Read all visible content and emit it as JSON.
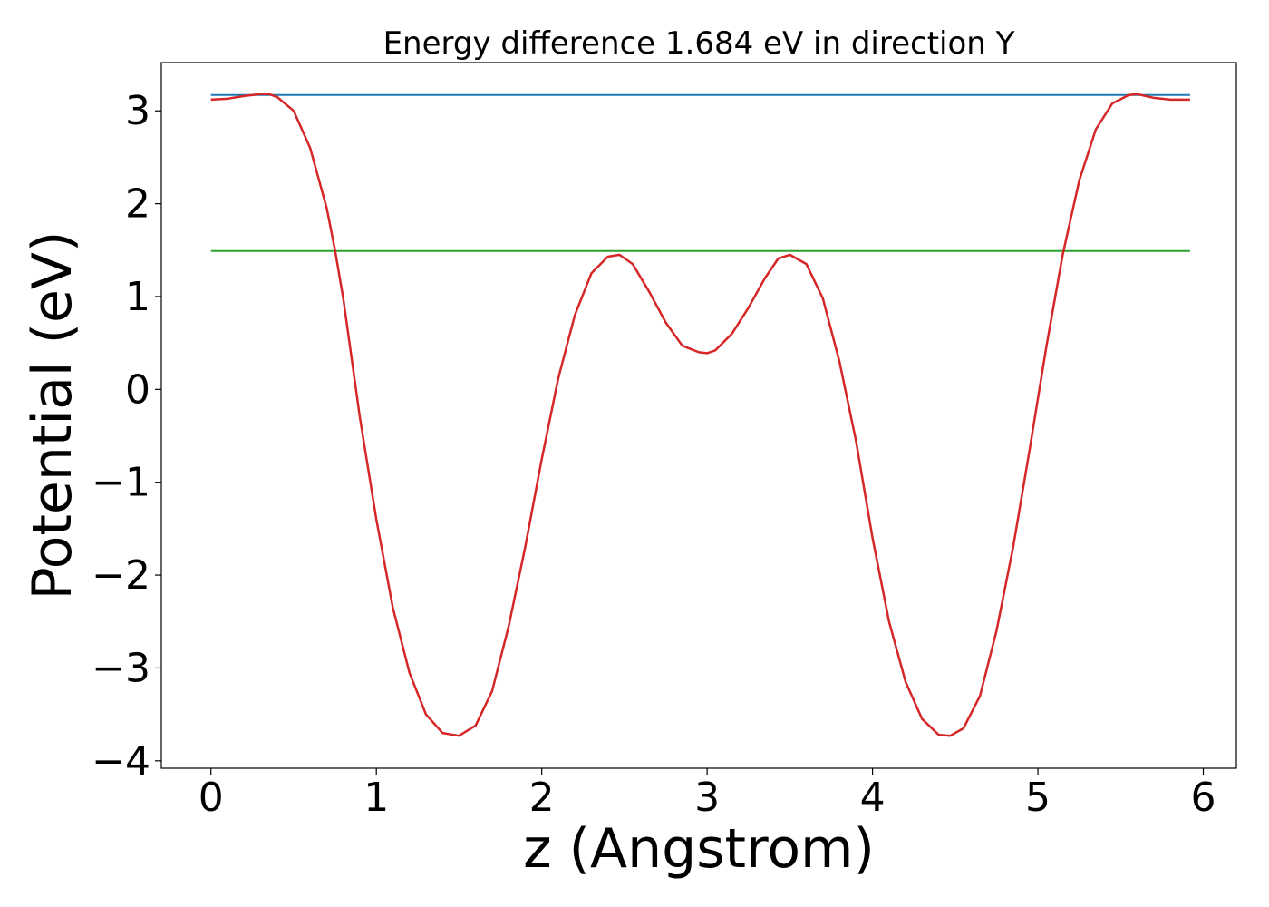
{
  "chart_data": {
    "type": "line",
    "title": "Energy difference 1.684 eV in direction Y",
    "xlabel": "z (Angstrom)",
    "ylabel": "Potential (eV)",
    "xlim": [
      -0.3,
      6.2
    ],
    "ylim": [
      -4.08,
      3.52
    ],
    "x_ticks": [
      0,
      1,
      2,
      3,
      4,
      5,
      6
    ],
    "x_tick_labels": [
      "0",
      "1",
      "2",
      "3",
      "4",
      "5",
      "6"
    ],
    "y_ticks": [
      -4,
      -3,
      -2,
      -1,
      0,
      1,
      2,
      3
    ],
    "y_tick_labels": [
      "−4",
      "−3",
      "−2",
      "−1",
      "0",
      "1",
      "2",
      "3"
    ],
    "grid": false,
    "series": [
      {
        "color": "#1f77b4",
        "x": [
          0,
          5.92
        ],
        "y": [
          3.17,
          3.17
        ]
      },
      {
        "color": "#2ca02c",
        "x": [
          0,
          5.92
        ],
        "y": [
          1.49,
          1.49
        ]
      },
      {
        "color": "#d62728",
        "x": [
          0,
          0.1,
          0.2,
          0.3,
          0.35,
          0.4,
          0.5,
          0.6,
          0.7,
          0.75,
          0.8,
          0.9,
          1.0,
          1.1,
          1.2,
          1.3,
          1.4,
          1.5,
          1.6,
          1.7,
          1.8,
          1.9,
          2.0,
          2.1,
          2.2,
          2.3,
          2.4,
          2.47,
          2.55,
          2.65,
          2.75,
          2.85,
          2.95,
          3.0,
          3.05,
          3.15,
          3.25,
          3.35,
          3.43,
          3.5,
          3.6,
          3.7,
          3.8,
          3.9,
          4.0,
          4.1,
          4.2,
          4.3,
          4.4,
          4.47,
          4.55,
          4.65,
          4.75,
          4.85,
          4.95,
          5.05,
          5.15,
          5.2,
          5.25,
          5.35,
          5.45,
          5.55,
          5.6,
          5.7,
          5.8,
          5.92
        ],
        "y": [
          3.12,
          3.13,
          3.16,
          3.18,
          3.18,
          3.15,
          3.0,
          2.6,
          1.95,
          1.5,
          0.98,
          -0.3,
          -1.4,
          -2.35,
          -3.05,
          -3.5,
          -3.7,
          -3.73,
          -3.62,
          -3.25,
          -2.55,
          -1.7,
          -0.75,
          0.12,
          0.8,
          1.25,
          1.43,
          1.45,
          1.35,
          1.05,
          0.72,
          0.47,
          0.4,
          0.39,
          0.42,
          0.6,
          0.88,
          1.2,
          1.41,
          1.45,
          1.35,
          0.98,
          0.3,
          -0.55,
          -1.6,
          -2.5,
          -3.15,
          -3.55,
          -3.72,
          -3.73,
          -3.65,
          -3.3,
          -2.6,
          -1.7,
          -0.65,
          0.45,
          1.45,
          1.85,
          2.25,
          2.8,
          3.08,
          3.17,
          3.18,
          3.14,
          3.12,
          3.12
        ]
      }
    ]
  }
}
